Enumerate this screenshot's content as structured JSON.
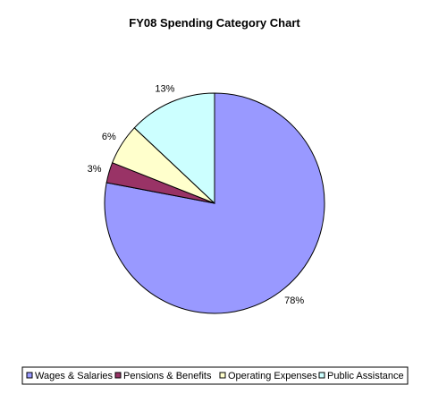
{
  "chart_data": {
    "type": "pie",
    "title": "FY08 Spending Category Chart",
    "categories": [
      "Wages & Salaries",
      "Pensions & Benefits",
      "Operating Expenses",
      "Public Assistance"
    ],
    "values": [
      78,
      3,
      6,
      13
    ],
    "labels": [
      "78%",
      "3%",
      "6%",
      "13%"
    ],
    "colors": [
      "#9999ff",
      "#993366",
      "#ffffcc",
      "#ccffff"
    ],
    "start_angle_deg": 0,
    "direction": "clockwise",
    "legend_position": "bottom"
  }
}
